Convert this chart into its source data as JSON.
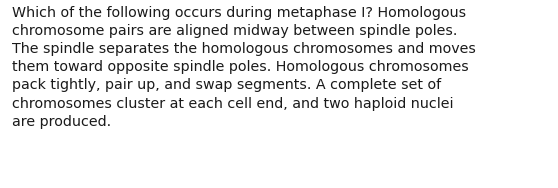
{
  "lines": [
    "Which of the following occurs during metaphase I? Homologous",
    "chromosome pairs are aligned midway between spindle poles.",
    "The spindle separates the homologous chromosomes and moves",
    "them toward opposite spindle poles. Homologous chromosomes",
    "pack tightly, pair up, and swap segments. A complete set of",
    "chromosomes cluster at each cell end, and two haploid nuclei",
    "are produced."
  ],
  "background_color": "#ffffff",
  "text_color": "#1a1a1a",
  "font_size": 10.3,
  "fig_width": 5.58,
  "fig_height": 1.88,
  "dpi": 100
}
